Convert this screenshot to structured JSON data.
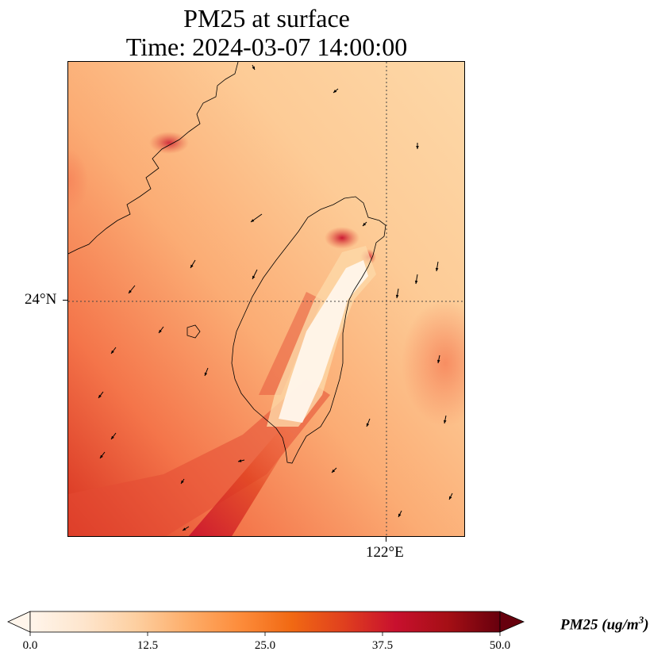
{
  "title": {
    "line1": "PM25 at surface",
    "line2": "Time: 2024-03-07 14:00:00"
  },
  "map": {
    "extent": {
      "lon_min": 119.0,
      "lon_max": 122.7,
      "lat_min": 21.8,
      "lat_max": 26.2
    },
    "gridlines": {
      "lat": 24.0,
      "lon": 122.0,
      "style": "dotted"
    },
    "lat_tick_label": "24°N",
    "lon_tick_label": "122°E",
    "wind_vectors": "present",
    "field": "PM25"
  },
  "colorbar": {
    "title_main": "PM25 (ug/m",
    "title_sup": "3",
    "title_close": ")",
    "tick_labels": [
      "0.0",
      "12.5",
      "25.0",
      "37.5",
      "50.0"
    ],
    "min": 0.0,
    "max": 50.0,
    "extend": "both",
    "colormap": [
      "#fff5eb",
      "#fee6ce",
      "#fdd0a2",
      "#fdae6b",
      "#fd8d3c",
      "#f16913",
      "#e0401e",
      "#c8102e",
      "#a50f15",
      "#67000d"
    ],
    "colors": {
      "low": "#fff5eb",
      "mid": "#fdae6b",
      "high": "#d7301f",
      "max": "#67000d"
    }
  }
}
